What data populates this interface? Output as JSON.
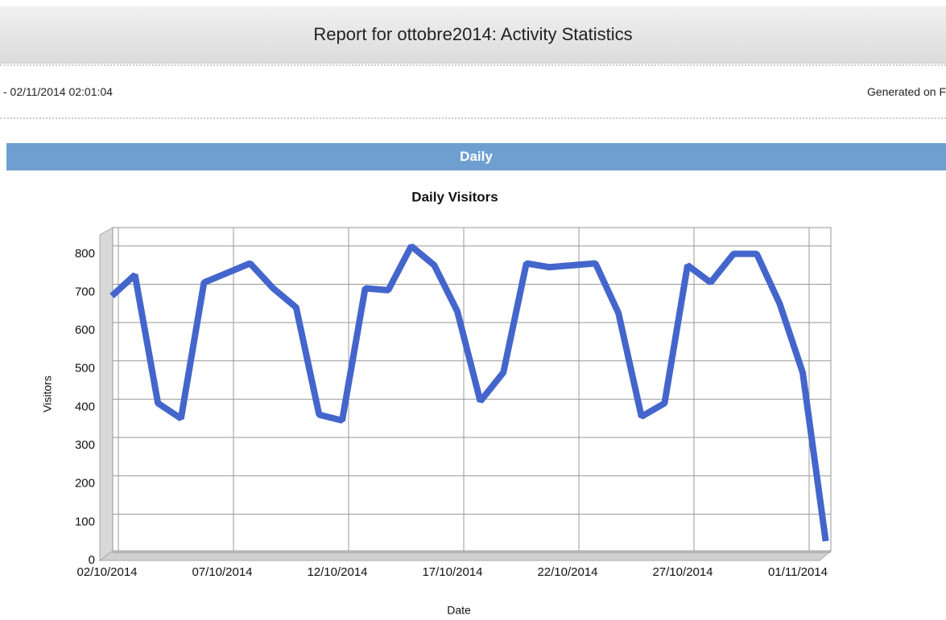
{
  "header": {
    "title": "Report for ottobre2014: Activity Statistics",
    "period": "- 02/11/2014 02:01:04",
    "generated": "Generated on F"
  },
  "section": "Daily",
  "chart_data": {
    "type": "line",
    "title": "Daily Visitors",
    "x_label": "Date",
    "y_label": "Visitors",
    "categories": [
      "02/10/2014",
      null,
      null,
      null,
      null,
      "07/10/2014",
      null,
      null,
      null,
      null,
      "12/10/2014",
      null,
      null,
      null,
      null,
      "17/10/2014",
      null,
      null,
      null,
      null,
      "22/10/2014",
      null,
      null,
      null,
      null,
      "27/10/2014",
      null,
      null,
      null,
      null,
      "01/11/2014",
      null
    ],
    "series": [
      {
        "name": "Visitors",
        "color": "#4466cc",
        "values": [
          680,
          735,
          400,
          360,
          715,
          740,
          765,
          700,
          650,
          370,
          355,
          700,
          695,
          810,
          760,
          640,
          405,
          480,
          765,
          755,
          760,
          765,
          635,
          365,
          400,
          760,
          715,
          790,
          790,
          660,
          480,
          40
        ]
      }
    ],
    "ylim": [
      0,
      850
    ],
    "yticks": [
      0,
      100,
      200,
      300,
      400,
      500,
      600,
      700,
      800
    ],
    "grid": true
  }
}
